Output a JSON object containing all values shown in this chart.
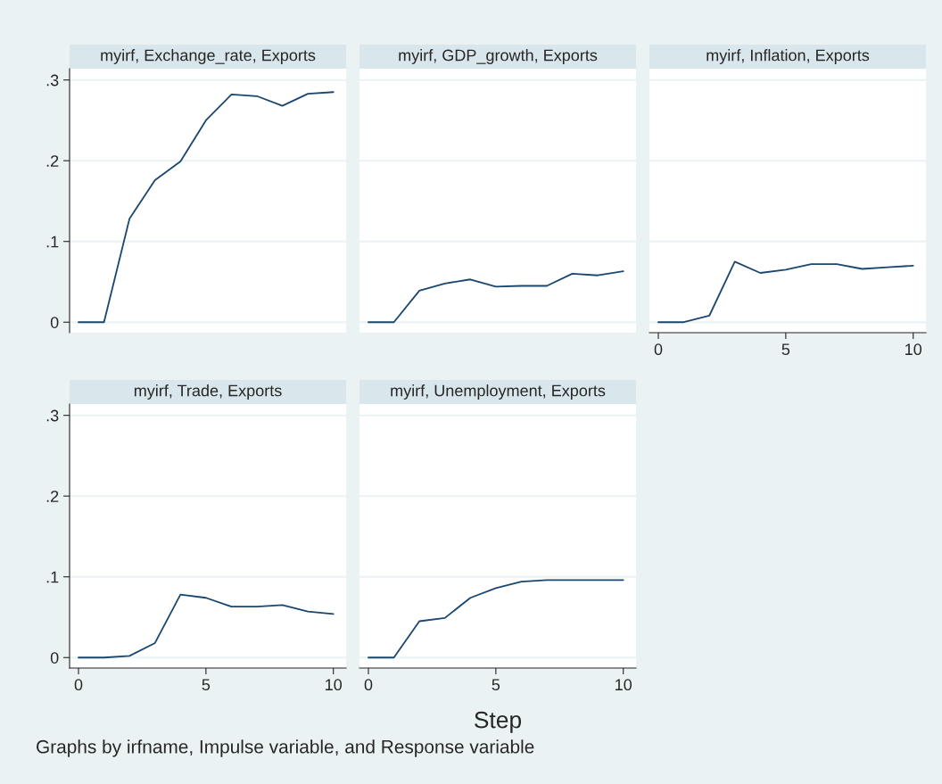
{
  "chart_data": [
    {
      "type": "line",
      "title": "myirf, Exchange_rate, Exports",
      "x": [
        0,
        1,
        2,
        3,
        4,
        5,
        6,
        7,
        8,
        9,
        10
      ],
      "xlim": [
        -0.35,
        10.5
      ],
      "ylim": [
        -0.013,
        0.314
      ],
      "yticks": [
        0,
        {
          "value": 0.1,
          "label": ".1"
        },
        {
          "value": 0.2,
          "label": ".2"
        },
        {
          "value": 0.3,
          "label": ".3"
        }
      ],
      "grid": "y",
      "tick_labels": "y",
      "series": [
        {
          "color": "#1a476f",
          "values": [
            0,
            0,
            0.128,
            0.176,
            0.199,
            0.25,
            0.282,
            0.28,
            0.268,
            0.283,
            0.285
          ]
        }
      ]
    },
    {
      "type": "line",
      "title": "myirf, GDP_growth, Exports",
      "x": [
        0,
        1,
        2,
        3,
        4,
        5,
        6,
        7,
        8,
        9,
        10
      ],
      "xlim": [
        -0.35,
        10.5
      ],
      "ylim": [
        -0.013,
        0.314
      ],
      "yticks": [
        0,
        0.1,
        0.2,
        0.3
      ],
      "grid": "y",
      "tick_labels": false,
      "series": [
        {
          "color": "#1a476f",
          "values": [
            0,
            0,
            0.039,
            0.048,
            0.053,
            0.044,
            0.045,
            0.045,
            0.06,
            0.058,
            0.063
          ]
        }
      ]
    },
    {
      "type": "line",
      "title": "myirf, Inflation, Exports",
      "x": [
        0,
        1,
        2,
        3,
        4,
        5,
        6,
        7,
        8,
        9,
        10
      ],
      "xlim": [
        -0.35,
        10.5
      ],
      "ylim": [
        -0.013,
        0.314
      ],
      "xticks": [
        0,
        5,
        10
      ],
      "yticks": [
        0,
        0.1,
        0.2,
        0.3
      ],
      "grid": "y",
      "tick_labels": "x",
      "series": [
        {
          "color": "#1a476f",
          "values": [
            0,
            0,
            0.008,
            0.075,
            0.061,
            0.065,
            0.072,
            0.072,
            0.066,
            0.068,
            0.07
          ]
        }
      ]
    },
    {
      "type": "line",
      "title": "myirf, Trade, Exports",
      "x": [
        0,
        1,
        2,
        3,
        4,
        5,
        6,
        7,
        8,
        9,
        10
      ],
      "xlim": [
        -0.35,
        10.5
      ],
      "ylim": [
        -0.013,
        0.314
      ],
      "xticks": [
        0,
        5,
        10
      ],
      "yticks": [
        0,
        {
          "value": 0.1,
          "label": ".1"
        },
        {
          "value": 0.2,
          "label": ".2"
        },
        {
          "value": 0.3,
          "label": ".3"
        }
      ],
      "grid": "y",
      "annotations": [
        "Graphs by irfname, Impulse variable, and Response variable"
      ],
      "series": [
        {
          "color": "#1a476f",
          "values": [
            0,
            0,
            0.002,
            0.018,
            0.078,
            0.074,
            0.063,
            0.063,
            0.065,
            0.057,
            0.054
          ]
        }
      ]
    },
    {
      "type": "line",
      "title": "myirf, Unemployment, Exports",
      "xlabel": "Step",
      "x": [
        0,
        1,
        2,
        3,
        4,
        5,
        6,
        7,
        8,
        9,
        10
      ],
      "xlim": [
        -0.35,
        10.5
      ],
      "ylim": [
        -0.013,
        0.314
      ],
      "xticks": [
        0,
        5,
        10
      ],
      "yticks": [
        0,
        0.1,
        0.2,
        0.3
      ],
      "grid": "y",
      "tick_labels": "x",
      "series": [
        {
          "color": "#1a476f",
          "values": [
            0,
            0,
            0.045,
            0.049,
            0.074,
            0.086,
            0.094,
            0.096,
            0.096,
            0.096,
            0.096
          ]
        }
      ]
    }
  ]
}
